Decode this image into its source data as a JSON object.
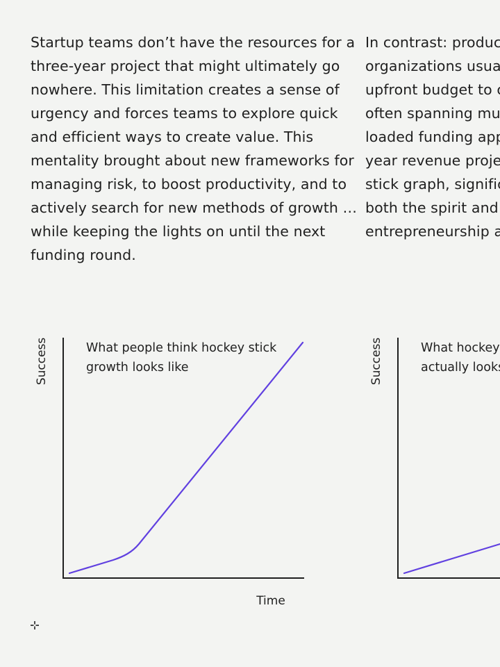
{
  "paragraphs": {
    "left": [
      "Startup teams don’t have the resources for a",
      "three-year project that might ultimately go",
      "nowhere. This limitation creates a sense of",
      "urgency and forces teams to explore quick",
      "and efficient ways to create value. This",
      "mentality brought about new frameworks for",
      "managing risk, to boost productivity, and to",
      "actively search for new methods of growth …",
      "while keeping the lights on until the next",
      "funding round."
    ],
    "right": [
      "In contrast: produc",
      "organizations usual",
      "upfront budget to c",
      "often spanning mul",
      "loaded funding app",
      "year revenue projec",
      "stick graph, signific",
      "both the spirit and",
      "entrepreneurship a"
    ]
  },
  "charts": {
    "left": {
      "ylabel": "Success",
      "xlabel": "Time",
      "caption_lines": [
        "What people think hockey stick",
        "growth looks like"
      ],
      "line_color": "#6040e0"
    },
    "right": {
      "ylabel": "Success",
      "caption_lines": [
        "What hockey",
        "actually looks"
      ],
      "line_color": "#6040e0"
    }
  },
  "icons": {
    "move": "move-icon"
  }
}
